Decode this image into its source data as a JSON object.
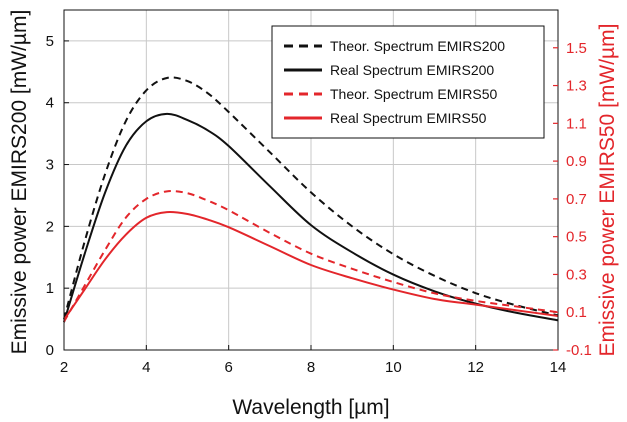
{
  "chart_data": {
    "type": "line",
    "xlabel": "Wavelength [µm]",
    "ylabel_left": "Emissive power EMIRS200 [mW/µm]",
    "ylabel_right": "Emissive power EMIRS50 [mW/µm]",
    "xlim": [
      2,
      14
    ],
    "ylim_left": [
      0,
      5.5
    ],
    "ylim_right": [
      -0.1,
      1.7
    ],
    "x_ticks": [
      2,
      4,
      6,
      8,
      10,
      12,
      14
    ],
    "x_tick_labels": [
      "2",
      "4",
      "6",
      "8",
      "10",
      "12",
      "14"
    ],
    "y_left_ticks": [
      0,
      1,
      2,
      3,
      4,
      5
    ],
    "y_left_tick_labels": [
      "0",
      "1",
      "2",
      "3",
      "4",
      "5"
    ],
    "y_right_ticks": [
      -0.1,
      0.1,
      0.3,
      0.5,
      0.7,
      0.9,
      1.1,
      1.3,
      1.5
    ],
    "y_right_tick_labels": [
      "-0.1",
      "0.1",
      "0.3",
      "0.5",
      "0.7",
      "0.9",
      "1.1",
      "1.3",
      "1.5"
    ],
    "grid": true,
    "legend_position": "top-right",
    "colors": {
      "emirs200": "#111111",
      "emirs50": "#e3262b"
    },
    "series": [
      {
        "name": "Theor. Spectrum EMIRS200",
        "axis": "left",
        "color": "#111111",
        "dash": true,
        "x": [
          2,
          2.5,
          3,
          3.5,
          4,
          4.5,
          5,
          5.5,
          6,
          7,
          8,
          9,
          10,
          11,
          12,
          13,
          14
        ],
        "y": [
          0.5,
          1.75,
          2.85,
          3.7,
          4.2,
          4.4,
          4.35,
          4.15,
          3.85,
          3.2,
          2.55,
          2.0,
          1.55,
          1.2,
          0.92,
          0.72,
          0.56
        ]
      },
      {
        "name": "Real Spectrum EMIRS200",
        "axis": "left",
        "color": "#111111",
        "dash": false,
        "x": [
          2,
          2.5,
          3,
          3.5,
          4,
          4.5,
          5,
          5.5,
          6,
          7,
          8,
          9,
          10,
          11,
          12,
          13,
          14
        ],
        "y": [
          0.45,
          1.55,
          2.55,
          3.3,
          3.7,
          3.82,
          3.72,
          3.55,
          3.3,
          2.65,
          2.02,
          1.58,
          1.22,
          0.95,
          0.75,
          0.6,
          0.48
        ]
      },
      {
        "name": "Theor. Spectrum EMIRS50",
        "axis": "right",
        "color": "#e3262b",
        "dash": true,
        "x": [
          2,
          2.5,
          3,
          3.5,
          4,
          4.5,
          5,
          5.5,
          6,
          7,
          8,
          9,
          10,
          11,
          12,
          13,
          14
        ],
        "y": [
          0.05,
          0.24,
          0.43,
          0.6,
          0.7,
          0.74,
          0.73,
          0.69,
          0.64,
          0.52,
          0.41,
          0.33,
          0.26,
          0.2,
          0.16,
          0.13,
          0.1
        ]
      },
      {
        "name": "Real Spectrum EMIRS50",
        "axis": "right",
        "color": "#e3262b",
        "dash": false,
        "x": [
          2,
          2.5,
          3,
          3.5,
          4,
          4.5,
          5,
          5.5,
          6,
          7,
          8,
          9,
          10,
          11,
          12,
          13,
          14
        ],
        "y": [
          0.06,
          0.22,
          0.38,
          0.51,
          0.6,
          0.63,
          0.62,
          0.59,
          0.55,
          0.45,
          0.35,
          0.28,
          0.22,
          0.17,
          0.14,
          0.11,
          0.08
        ]
      }
    ]
  }
}
